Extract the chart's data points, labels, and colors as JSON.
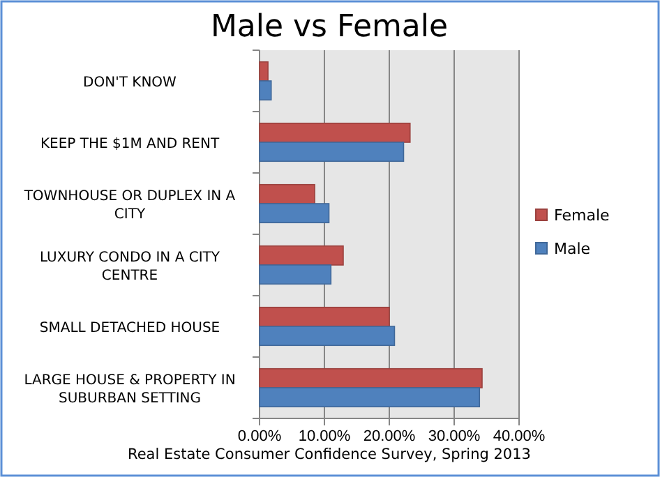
{
  "chart_data": {
    "type": "bar",
    "orientation": "horizontal",
    "title": "Male vs Female",
    "categories": [
      "DON'T KNOW",
      "KEEP THE $1M AND RENT",
      "TOWNHOUSE OR DUPLEX IN A CITY",
      "LUXURY CONDO IN A CITY CENTRE",
      "SMALL DETACHED HOUSE",
      "LARGE HOUSE & PROPERTY IN SUBURBAN SETTING"
    ],
    "series": [
      {
        "name": "Female",
        "color": "#c0504d",
        "values": [
          1.3,
          23.2,
          8.5,
          12.9,
          20.0,
          34.3
        ]
      },
      {
        "name": "Male",
        "color": "#4f81bd",
        "values": [
          1.8,
          22.2,
          10.7,
          11.0,
          20.8,
          33.9
        ]
      }
    ],
    "xlim": [
      0,
      40
    ],
    "xticks": [
      {
        "value": 0,
        "label": "0.00%"
      },
      {
        "value": 10,
        "label": "10.00%"
      },
      {
        "value": 20,
        "label": "20.00%"
      },
      {
        "value": 30,
        "label": "30.00%"
      },
      {
        "value": 40,
        "label": "40.00%"
      }
    ],
    "grid": "x",
    "legend": "right",
    "annotations": [
      "Real Estate Consumer Confidence Survey, Spring 2013"
    ]
  }
}
